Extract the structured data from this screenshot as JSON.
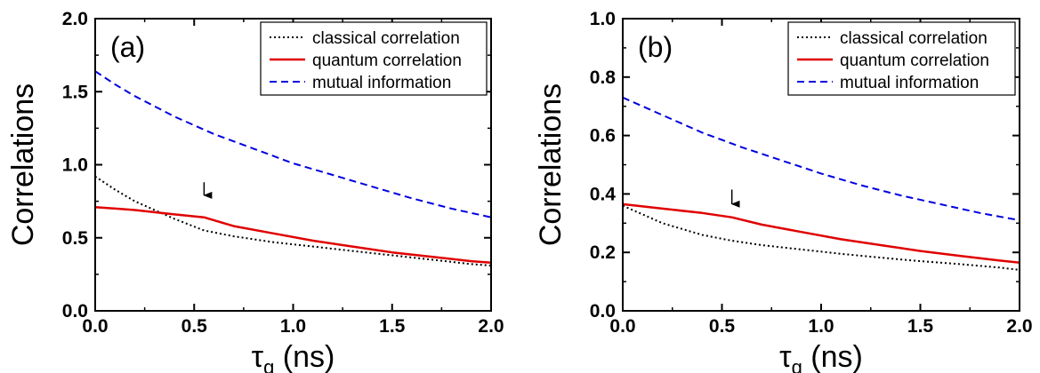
{
  "chart_data": [
    {
      "type": "line",
      "panel_label": "(a)",
      "xlabel": "τ",
      "xlabel_sub": "g",
      "xlabel_unit": " (ns)",
      "ylabel": "Correlations",
      "xlim": [
        0,
        2.0
      ],
      "ylim": [
        0,
        2.0
      ],
      "x_ticks": [
        "0.0",
        "0.5",
        "1.0",
        "1.5",
        "2.0"
      ],
      "y_ticks": [
        "0.0",
        "0.5",
        "1.0",
        "1.5",
        "2.0"
      ],
      "legend_position": "top-right",
      "arrow": {
        "x": 0.55,
        "y_from": 0.88,
        "y_to": 0.73
      },
      "series": [
        {
          "name": "classical correlation",
          "color": "#000000",
          "style": "dotted",
          "x": [
            0,
            0.1,
            0.2,
            0.3,
            0.4,
            0.55,
            0.7,
            0.9,
            1.1,
            1.3,
            1.5,
            1.7,
            1.9,
            2.0
          ],
          "y": [
            0.92,
            0.83,
            0.75,
            0.69,
            0.63,
            0.55,
            0.51,
            0.47,
            0.44,
            0.41,
            0.38,
            0.35,
            0.32,
            0.31
          ]
        },
        {
          "name": "quantum correlation",
          "color": "#e00000",
          "style": "solid",
          "x": [
            0,
            0.2,
            0.4,
            0.55,
            0.7,
            0.9,
            1.1,
            1.3,
            1.5,
            1.7,
            1.9,
            2.0
          ],
          "y": [
            0.71,
            0.69,
            0.66,
            0.64,
            0.58,
            0.53,
            0.48,
            0.44,
            0.4,
            0.37,
            0.34,
            0.33
          ]
        },
        {
          "name": "mutual information",
          "color": "#0000e0",
          "style": "dashed",
          "x": [
            0,
            0.1,
            0.2,
            0.3,
            0.4,
            0.5,
            0.6,
            0.8,
            1.0,
            1.2,
            1.4,
            1.6,
            1.8,
            2.0
          ],
          "y": [
            1.64,
            1.55,
            1.47,
            1.4,
            1.33,
            1.27,
            1.21,
            1.11,
            1.01,
            0.93,
            0.85,
            0.77,
            0.7,
            0.64
          ]
        }
      ]
    },
    {
      "type": "line",
      "panel_label": "(b)",
      "xlabel": "τ",
      "xlabel_sub": "g",
      "xlabel_unit": " (ns)",
      "ylabel": "Correlations",
      "xlim": [
        0,
        2.0
      ],
      "ylim": [
        0,
        1.0
      ],
      "x_ticks": [
        "0.0",
        "0.5",
        "1.0",
        "1.5",
        "2.0"
      ],
      "y_ticks": [
        "0.0",
        "0.2",
        "0.4",
        "0.6",
        "0.8",
        "1.0"
      ],
      "legend_position": "top-right",
      "arrow": {
        "x": 0.55,
        "y_from": 0.415,
        "y_to": 0.335
      },
      "series": [
        {
          "name": "classical correlation",
          "color": "#000000",
          "style": "dotted",
          "x": [
            0,
            0.1,
            0.2,
            0.3,
            0.4,
            0.55,
            0.7,
            0.9,
            1.1,
            1.3,
            1.5,
            1.7,
            1.9,
            2.0
          ],
          "y": [
            0.36,
            0.33,
            0.3,
            0.28,
            0.26,
            0.24,
            0.225,
            0.21,
            0.195,
            0.182,
            0.17,
            0.16,
            0.148,
            0.14
          ]
        },
        {
          "name": "quantum correlation",
          "color": "#e00000",
          "style": "solid",
          "x": [
            0,
            0.2,
            0.4,
            0.55,
            0.7,
            0.9,
            1.1,
            1.3,
            1.5,
            1.7,
            1.9,
            2.0
          ],
          "y": [
            0.365,
            0.35,
            0.335,
            0.32,
            0.295,
            0.27,
            0.245,
            0.225,
            0.205,
            0.188,
            0.172,
            0.165
          ]
        },
        {
          "name": "mutual information",
          "color": "#0000e0",
          "style": "dashed",
          "x": [
            0,
            0.1,
            0.2,
            0.3,
            0.4,
            0.5,
            0.6,
            0.8,
            1.0,
            1.2,
            1.4,
            1.6,
            1.8,
            2.0
          ],
          "y": [
            0.73,
            0.7,
            0.67,
            0.64,
            0.61,
            0.585,
            0.56,
            0.515,
            0.47,
            0.43,
            0.395,
            0.365,
            0.335,
            0.31
          ]
        }
      ]
    }
  ]
}
